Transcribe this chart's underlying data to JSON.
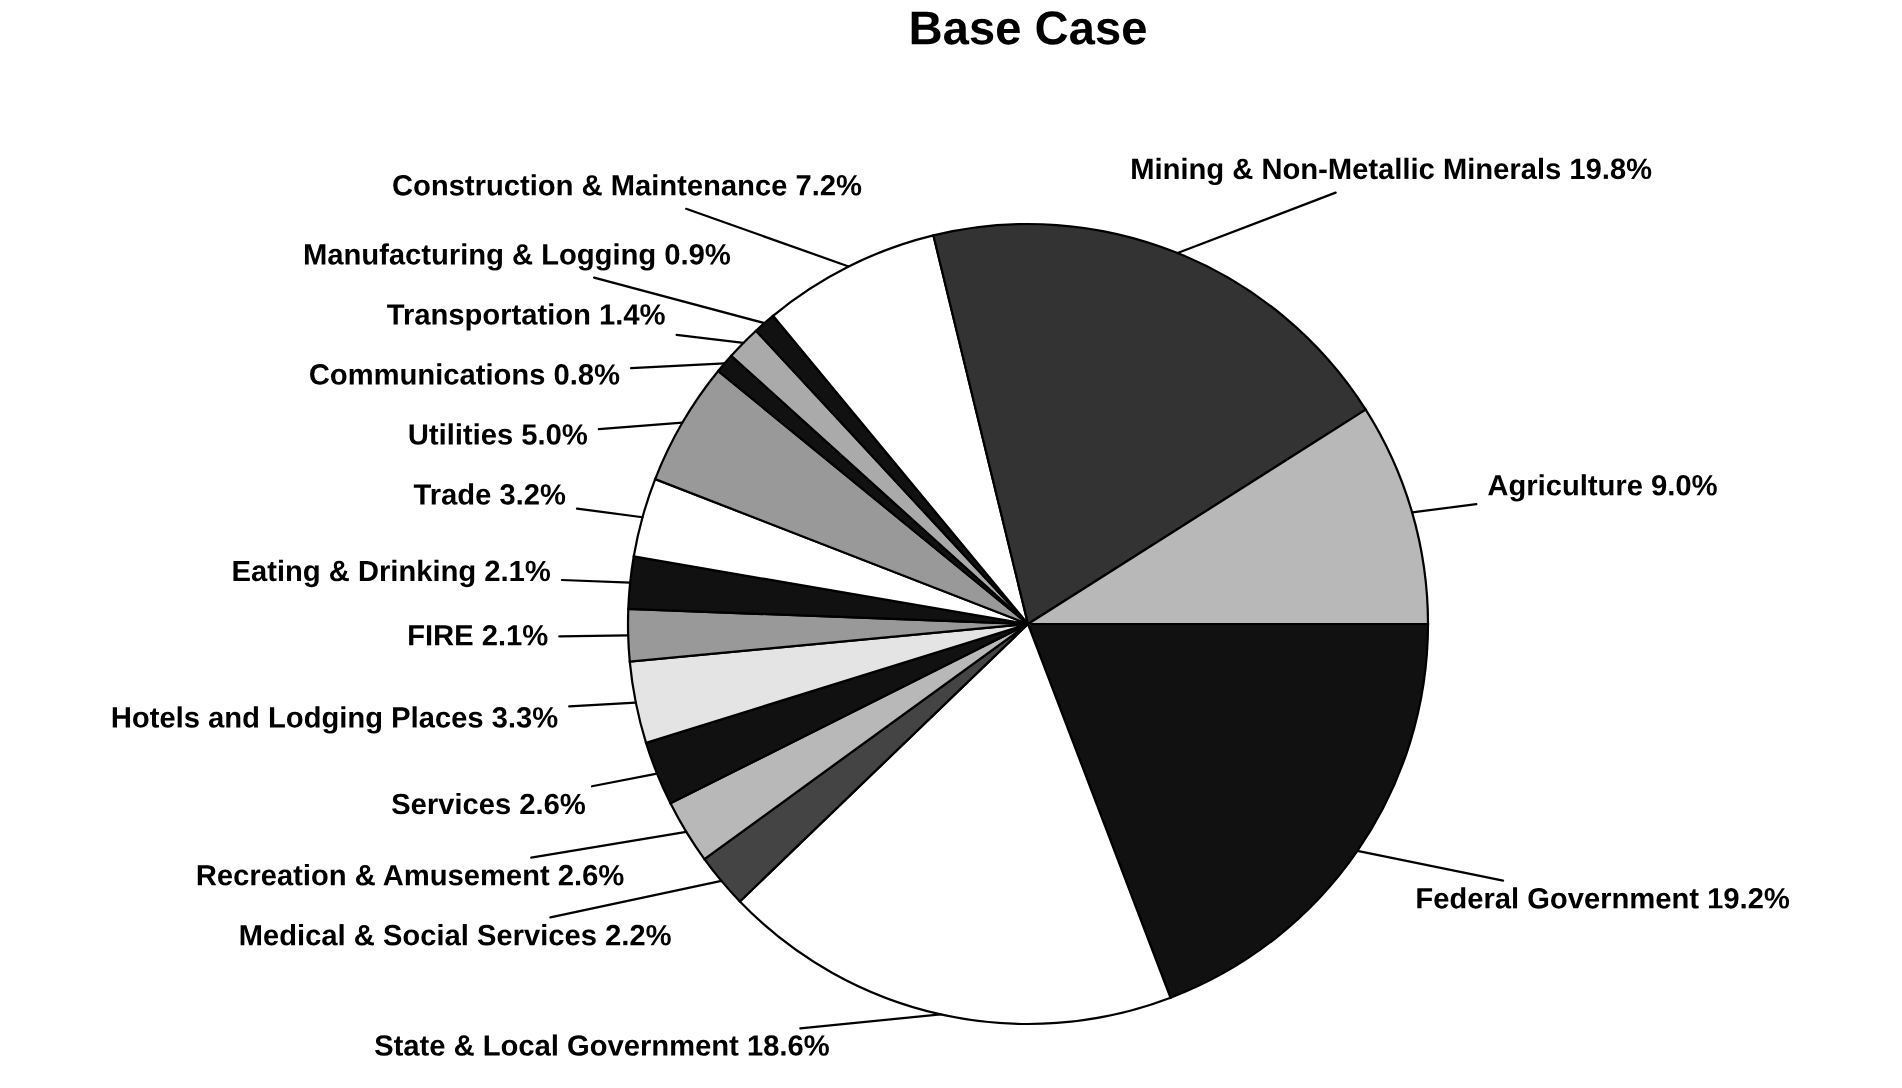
{
  "chart_data": {
    "type": "pie",
    "title": "Base Case",
    "categories": [
      "Federal Government",
      "State & Local Government",
      "Medical & Social Services",
      "Recreation & Amusement",
      "Services",
      "Hotels and Lodging Places",
      "FIRE",
      "Eating & Drinking",
      "Trade",
      "Utilities",
      "Communications",
      "Transportation",
      "Manufacturing & Logging",
      "Construction & Maintenance",
      "Mining & Non-Metallic Minerals",
      "Agriculture"
    ],
    "values": [
      19.2,
      18.6,
      2.2,
      2.6,
      2.6,
      3.3,
      2.1,
      2.1,
      3.2,
      5.0,
      0.8,
      1.4,
      0.9,
      7.2,
      19.8,
      9.0
    ],
    "value_labels": [
      "19.2%",
      "18.6%",
      "2.2%",
      "2.6%",
      "2.6%",
      "3.3%",
      "2.1%",
      "2.1%",
      "3.2%",
      "5.0%",
      "0.8%",
      "1.4%",
      "0.9%",
      "7.2%",
      "19.8%",
      "9.0%"
    ],
    "colors": [
      "#111111",
      "#ffffff",
      "#444444",
      "#b8b8b8",
      "#111111",
      "#e4e4e4",
      "#999999",
      "#111111",
      "#ffffff",
      "#999999",
      "#111111",
      "#aaaaaa",
      "#111111",
      "#ffffff",
      "#333333",
      "#b8b8b8"
    ]
  }
}
